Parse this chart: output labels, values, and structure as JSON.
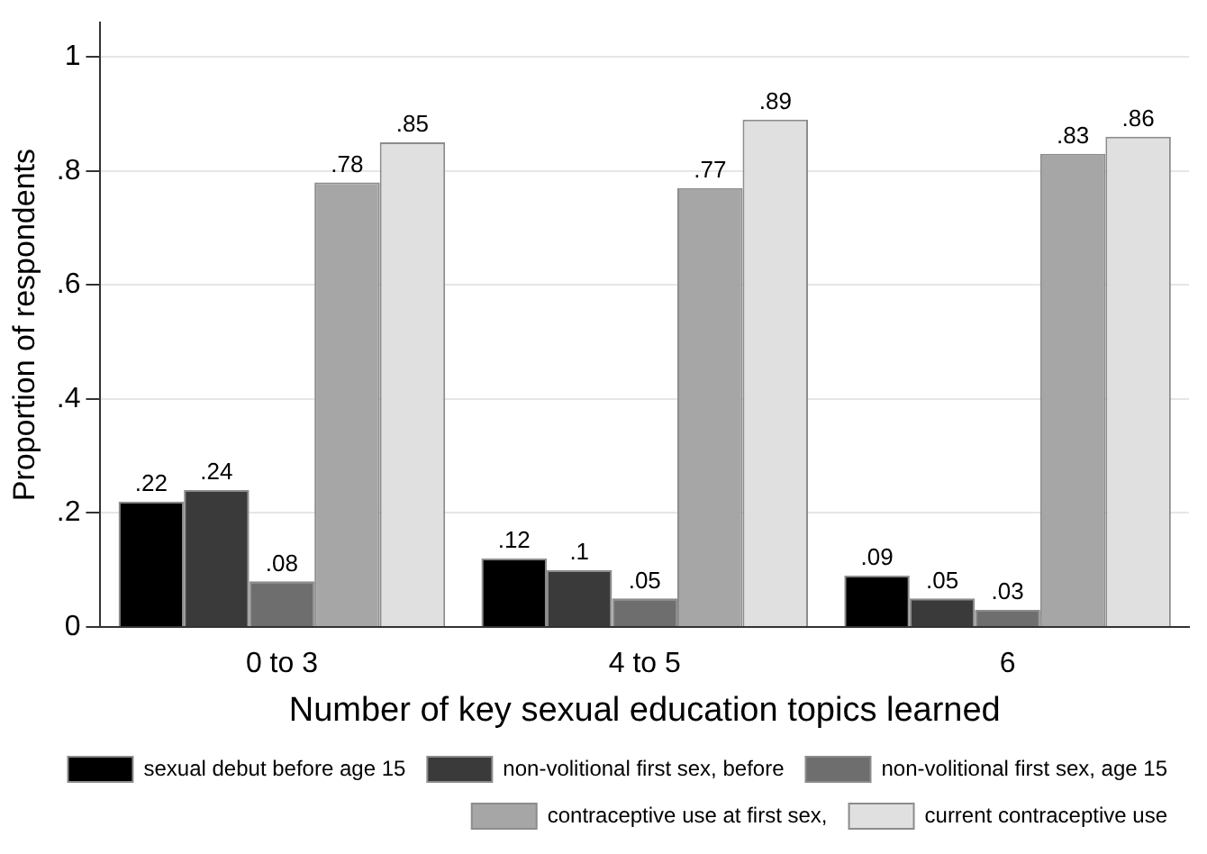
{
  "chart_data": {
    "type": "bar",
    "xlabel": "Number of key sexual education topics learned",
    "ylabel": "Proportion of respondents",
    "categories": [
      "0 to 3",
      "4 to 5",
      "6"
    ],
    "series": [
      {
        "name": "sexual debut before age 15",
        "color": "#000000",
        "values": [
          0.22,
          0.12,
          0.09
        ],
        "value_labels": [
          ".22",
          ".12",
          ".09"
        ]
      },
      {
        "name": "non-volitional first sex, before",
        "color": "#3a3a3a",
        "values": [
          0.24,
          0.1,
          0.05
        ],
        "value_labels": [
          ".24",
          ".1",
          ".05"
        ]
      },
      {
        "name": "non-volitional first sex, age 15",
        "color": "#6e6e6e",
        "values": [
          0.08,
          0.05,
          0.03
        ],
        "value_labels": [
          ".08",
          ".05",
          ".03"
        ]
      },
      {
        "name": "contraceptive use at first sex,",
        "color": "#a6a6a6",
        "values": [
          0.78,
          0.77,
          0.83
        ],
        "value_labels": [
          ".78",
          ".77",
          ".83"
        ]
      },
      {
        "name": "current contraceptive use",
        "color": "#e0e0e0",
        "values": [
          0.85,
          0.89,
          0.86
        ],
        "value_labels": [
          ".85",
          ".89",
          ".86"
        ]
      }
    ],
    "ylim": [
      0,
      1.06
    ],
    "yticks": [
      0,
      {
        "value": 0.2,
        "label": ".2"
      },
      {
        "value": 0.4,
        "label": ".4"
      },
      {
        "value": 0.6,
        "label": ".6"
      },
      {
        "value": 0.8,
        "label": ".8"
      },
      1
    ],
    "grid": "y",
    "legend": "bottom"
  }
}
